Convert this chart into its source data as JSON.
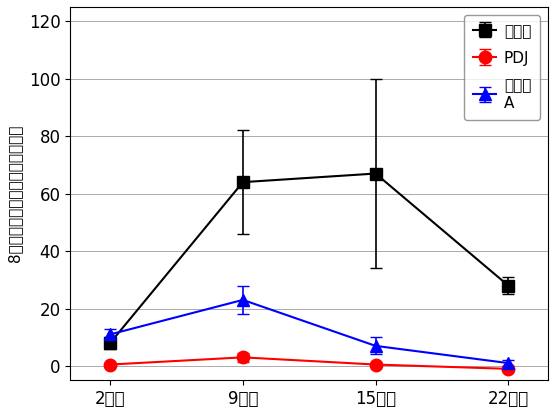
{
  "x_labels": [
    "2日後",
    "9日後",
    "15日後",
    "22日後"
  ],
  "x_positions": [
    0,
    1,
    2,
    3
  ],
  "series": [
    {
      "name": "無処理",
      "color": "#000000",
      "marker": "s",
      "markersize": 9,
      "values": [
        8,
        64,
        67,
        28
      ],
      "yerr": [
        2,
        18,
        33,
        3
      ]
    },
    {
      "name": "PDJ",
      "color": "#ff0000",
      "marker": "o",
      "markersize": 9,
      "values": [
        0.5,
        3,
        0.5,
        -1
      ],
      "yerr": [
        0.5,
        1.5,
        0.5,
        0.5
      ]
    },
    {
      "name": "殺虫剤\nA",
      "color": "#0000ff",
      "marker": "^",
      "markersize": 9,
      "values": [
        11,
        23,
        7,
        1
      ],
      "yerr": [
        2,
        5,
        3,
        1
      ]
    }
  ],
  "ylim": [
    -5,
    125
  ],
  "yticks": [
    0,
    20,
    40,
    60,
    80,
    100,
    120
  ],
  "ylabel": "8株あたりのアザミウマ成幼虫数",
  "legend_loc": "upper right",
  "linewidth": 1.5,
  "capsize": 4
}
